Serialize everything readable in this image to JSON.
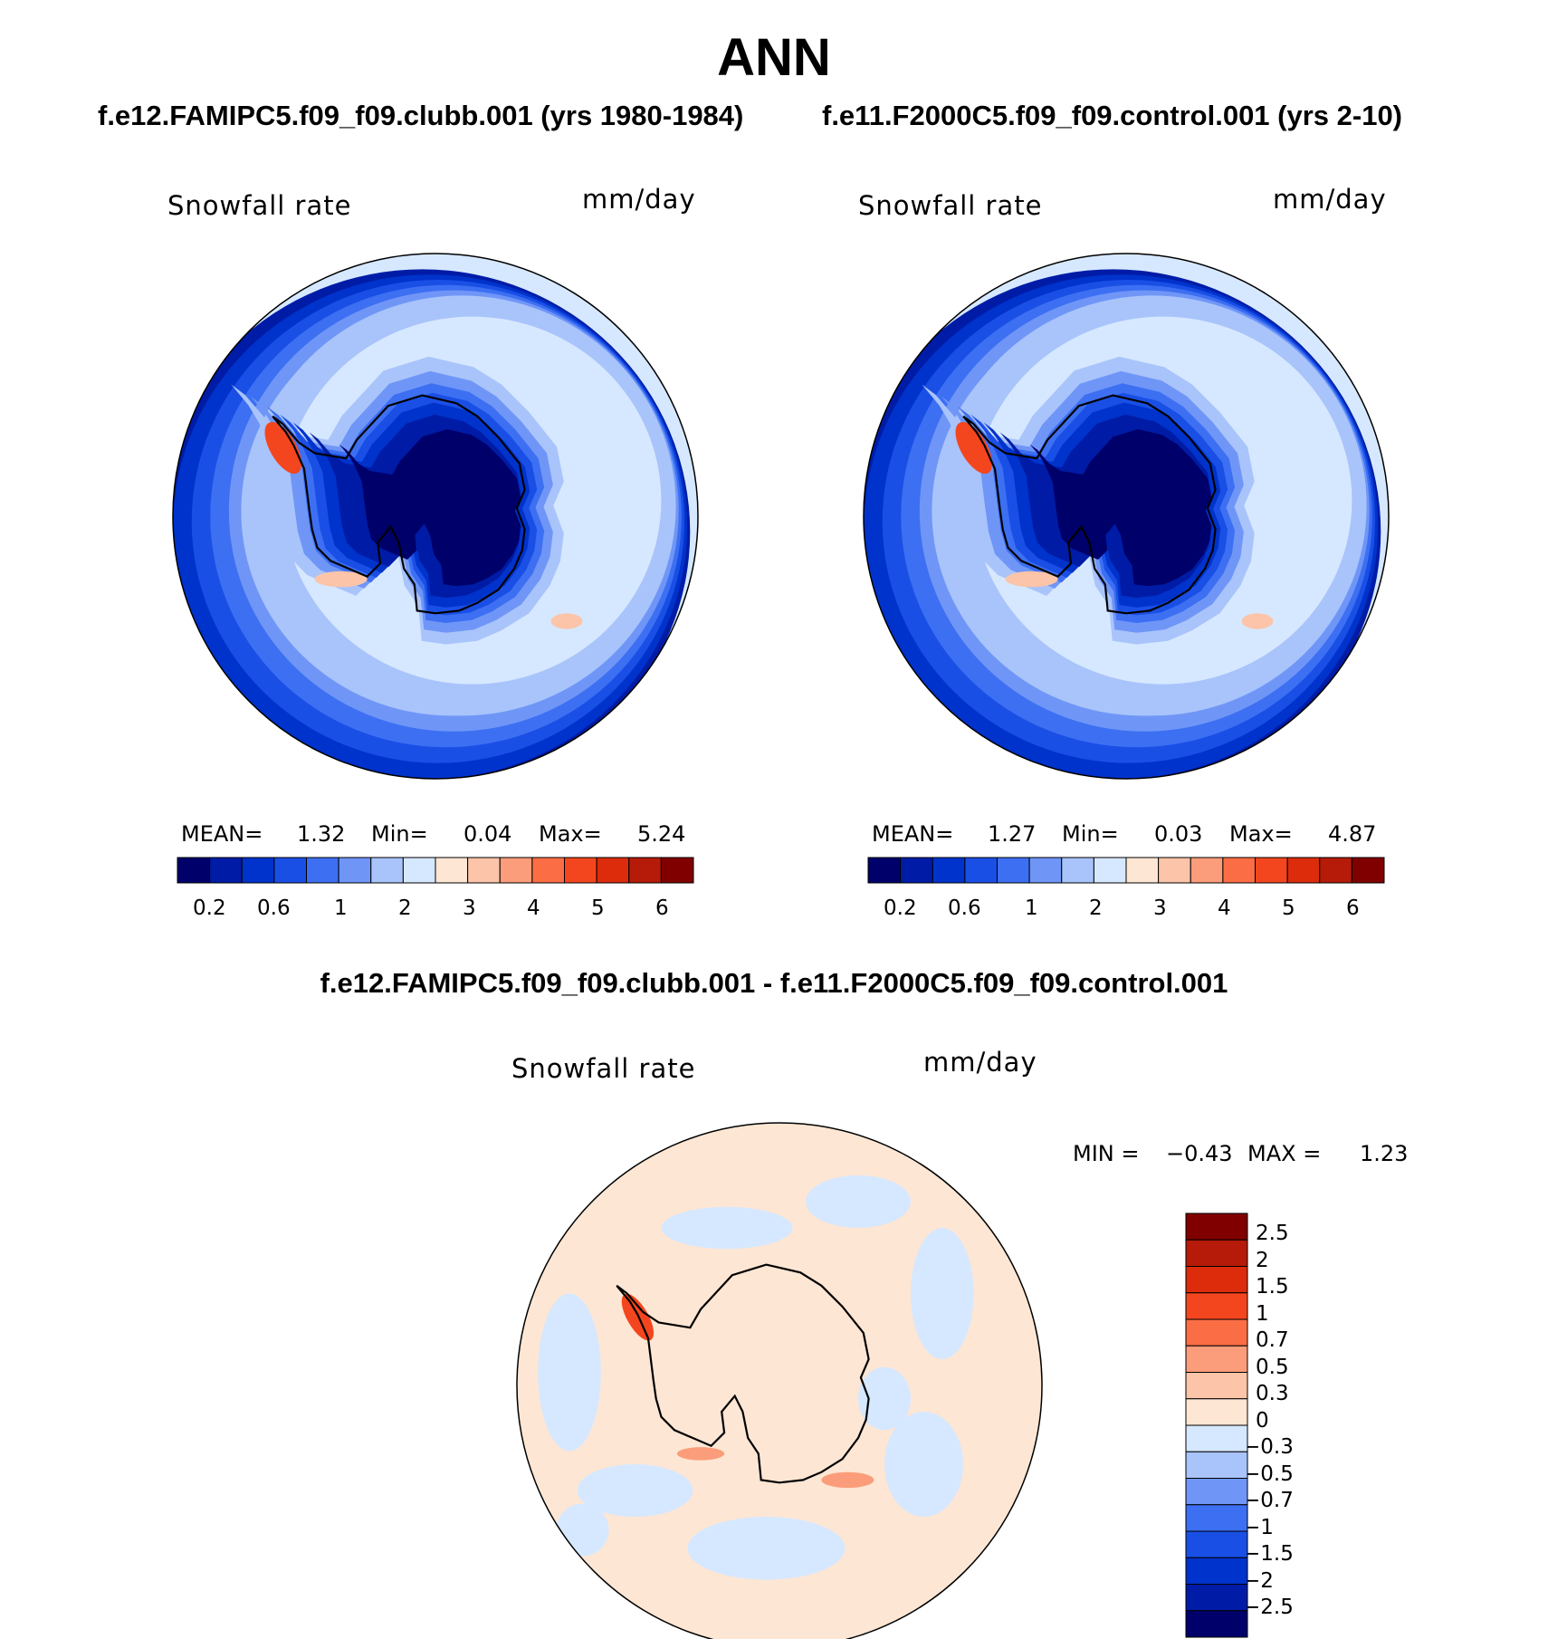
{
  "page": {
    "title": "ANN",
    "diff_title": "f.e12.FAMIPC5.f09_f09.clubb.001 - f.e11.F2000C5.f09_f09.control.001"
  },
  "panels": [
    {
      "case_title": "f.e12.FAMIPC5.f09_f09.clubb.001 (yrs 1980-1984)",
      "variable": "Snowfall rate",
      "units": "mm/day",
      "stats": {
        "mean_label": "MEAN=",
        "mean": "1.32",
        "min_label": "Min=",
        "min": "0.04",
        "max_label": "Max=",
        "max": "5.24"
      }
    },
    {
      "case_title": "f.e11.F2000C5.f09_f09.control.001 (yrs 2-10)",
      "variable": "Snowfall rate",
      "units": "mm/day",
      "stats": {
        "mean_label": "MEAN=",
        "mean": "1.27",
        "min_label": "Min=",
        "min": "0.03",
        "max_label": "Max=",
        "max": "4.87"
      }
    }
  ],
  "diff_panel": {
    "variable": "Snowfall rate",
    "units": "mm/day",
    "stats": {
      "min_label": "MIN =",
      "min": "−0.43",
      "max_label": "MAX =",
      "max": "1.23"
    }
  },
  "colorbar_main": {
    "colors": [
      "#00006b",
      "#001ca6",
      "#0033cc",
      "#1a4fe6",
      "#3d6ff2",
      "#6f96f7",
      "#a9c4fb",
      "#d6e8ff",
      "#fde6d4",
      "#fcc4a8",
      "#fb9d7a",
      "#fb6e45",
      "#f4461e",
      "#dc2c0c",
      "#b51b08",
      "#800000"
    ],
    "tick_labels": [
      "0.2",
      "0.6",
      "1",
      "2",
      "3",
      "4",
      "5",
      "6"
    ]
  },
  "colorbar_diff": {
    "colors": [
      "#800000",
      "#b51b08",
      "#dc2c0c",
      "#f4461e",
      "#fb6e45",
      "#fb9d7a",
      "#fcc4a8",
      "#fde6d4",
      "#d6e8ff",
      "#a9c4fb",
      "#6f96f7",
      "#3d6ff2",
      "#1a4fe6",
      "#0033cc",
      "#001ca6",
      "#00006b"
    ],
    "tick_labels": [
      "2.5",
      "2",
      "1.5",
      "1",
      "0.7",
      "0.5",
      "0.3",
      "0",
      "−0.3",
      "−0.5",
      "−0.7",
      "−1",
      "−1.5",
      "−2",
      "−2.5"
    ]
  },
  "map_colors": {
    "ocean_far": "#d6e8ff",
    "ring1": "#a9c4fb",
    "ring2": "#6f96f7",
    "ring3": "#3d6ff2",
    "ring4": "#1a4fe6",
    "ring5": "#0033cc",
    "ring6": "#001ca6",
    "interior": "#00006b",
    "diff_positive": "#fde6d4",
    "diff_negative": "#d6e8ff",
    "diff_peak": "#fb9d7a",
    "coast_peak": "#f4461e",
    "coastline": "#000000"
  }
}
